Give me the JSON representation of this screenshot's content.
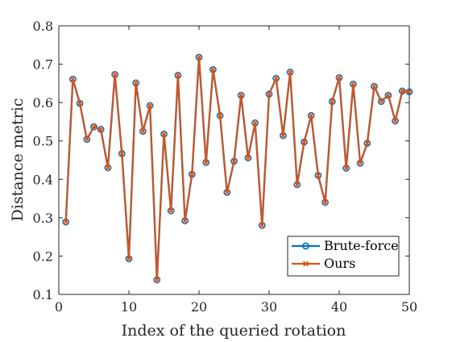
{
  "chart_data": {
    "type": "line",
    "title": "",
    "xlabel": "Index of the queried rotation",
    "ylabel": "Distance metric",
    "xlim": [
      0,
      50
    ],
    "ylim": [
      0.1,
      0.8
    ],
    "xticks": [
      0,
      10,
      20,
      30,
      40,
      50
    ],
    "yticks": [
      0.1,
      0.2,
      0.3,
      0.4,
      0.5,
      0.6,
      0.7,
      0.8
    ],
    "xtick_labels": [
      "0",
      "10",
      "20",
      "30",
      "40",
      "50"
    ],
    "ytick_labels": [
      "0.1",
      "0.2",
      "0.3",
      "0.4",
      "0.5",
      "0.6",
      "0.7",
      "0.8"
    ],
    "grid": false,
    "legend_position": "bottom-right",
    "x": [
      1,
      2,
      3,
      4,
      5,
      6,
      7,
      8,
      9,
      10,
      11,
      12,
      13,
      14,
      15,
      16,
      17,
      18,
      19,
      20,
      21,
      22,
      23,
      24,
      25,
      26,
      27,
      28,
      29,
      30,
      31,
      32,
      33,
      34,
      35,
      36,
      37,
      38,
      39,
      40,
      41,
      42,
      43,
      44,
      45,
      46,
      47,
      48,
      49,
      50
    ],
    "series": [
      {
        "name": "Brute-force",
        "color": "#0072BD",
        "marker": "circle",
        "values": [
          0.289,
          0.661,
          0.598,
          0.504,
          0.537,
          0.53,
          0.43,
          0.673,
          0.467,
          0.193,
          0.651,
          0.525,
          0.592,
          0.138,
          0.518,
          0.318,
          0.671,
          0.292,
          0.413,
          0.718,
          0.444,
          0.686,
          0.566,
          0.366,
          0.447,
          0.619,
          0.456,
          0.547,
          0.28,
          0.622,
          0.663,
          0.514,
          0.679,
          0.386,
          0.497,
          0.566,
          0.41,
          0.34,
          0.603,
          0.665,
          0.429,
          0.648,
          0.442,
          0.494,
          0.642,
          0.603,
          0.619,
          0.552,
          0.63,
          0.628
        ]
      },
      {
        "name": "Ours",
        "color": "#D95319",
        "marker": "x",
        "values": [
          0.289,
          0.661,
          0.598,
          0.504,
          0.537,
          0.53,
          0.43,
          0.673,
          0.467,
          0.193,
          0.651,
          0.525,
          0.592,
          0.138,
          0.518,
          0.318,
          0.671,
          0.292,
          0.413,
          0.718,
          0.444,
          0.686,
          0.566,
          0.366,
          0.447,
          0.619,
          0.456,
          0.547,
          0.28,
          0.622,
          0.663,
          0.514,
          0.679,
          0.386,
          0.497,
          0.566,
          0.41,
          0.34,
          0.603,
          0.665,
          0.429,
          0.648,
          0.442,
          0.494,
          0.642,
          0.603,
          0.619,
          0.552,
          0.63,
          0.628
        ]
      }
    ]
  }
}
